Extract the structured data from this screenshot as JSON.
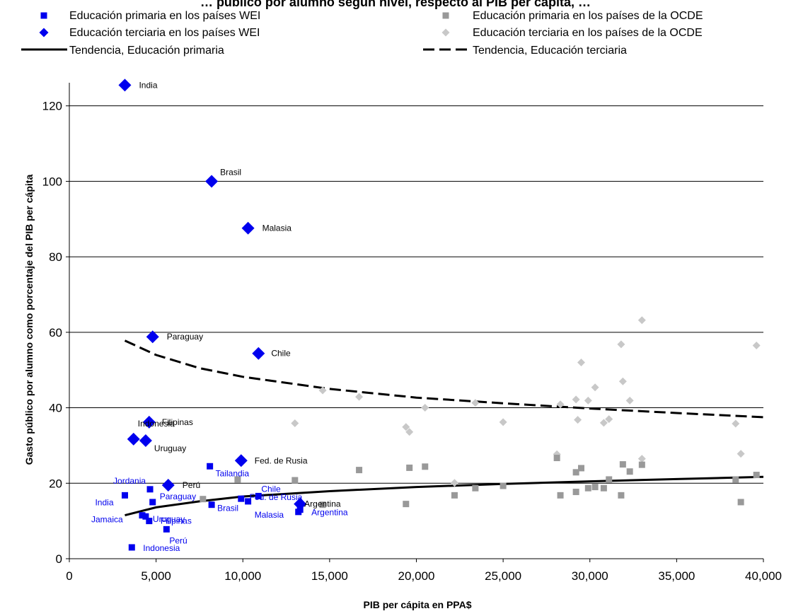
{
  "chart_data": {
    "type": "scatter",
    "title": "… público por alumno según nivel, respecto al PIB per cápita, …",
    "xlabel": "PIB  per cápita en PPA$",
    "ylabel": "Gasto público por alumno como porcentaje del PIB per cápita",
    "xlim": [
      0,
      40000
    ],
    "ylim": [
      0,
      125
    ],
    "x_ticks": [
      0,
      5000,
      10000,
      15000,
      20000,
      25000,
      30000,
      35000,
      40000
    ],
    "x_tick_labels": [
      "0",
      "5,000",
      "10,000",
      "15,000",
      "20,000",
      "25,000",
      "30,000",
      "35,000",
      "40,000"
    ],
    "y_ticks": [
      0,
      20,
      40,
      60,
      80,
      100,
      120
    ],
    "y_tick_labels": [
      "0",
      "20",
      "40",
      "60",
      "80",
      "100",
      "120"
    ],
    "grid": "horizontal",
    "legend_position": "top",
    "colors": {
      "wei": "#0000ee",
      "oecd_primary": "#999999",
      "oecd_tertiary": "#c8c8c8",
      "trend": "#000000"
    },
    "series": [
      {
        "name": "Educación primaria en los países WEI",
        "marker": "square",
        "points": [
          {
            "x": 3200,
            "y": 16.8,
            "label": "India"
          },
          {
            "x": 3600,
            "y": 3.0,
            "label": "Indonesia"
          },
          {
            "x": 4200,
            "y": 11.5,
            "label": "Jamaica"
          },
          {
            "x": 4400,
            "y": 11.2,
            "label": "Uruguay"
          },
          {
            "x": 4600,
            "y": 10.0,
            "label": "Filipinas"
          },
          {
            "x": 4650,
            "y": 18.4,
            "label": "Jordania"
          },
          {
            "x": 4800,
            "y": 15.0,
            "label": "Paraguay"
          },
          {
            "x": 5600,
            "y": 7.8,
            "label": "Perú"
          },
          {
            "x": 8100,
            "y": 24.5,
            "label": "Tailandia"
          },
          {
            "x": 8200,
            "y": 14.3,
            "label": "Brasil"
          },
          {
            "x": 9900,
            "y": 15.9,
            "label": ""
          },
          {
            "x": 10300,
            "y": 15.2,
            "label": "Fed. de Rusia"
          },
          {
            "x": 10900,
            "y": 16.6,
            "label": "Chile"
          },
          {
            "x": 13200,
            "y": 12.4,
            "label": "Malasia"
          },
          {
            "x": 13300,
            "y": 13.0,
            "label": "Argentina"
          }
        ]
      },
      {
        "name": "Educación terciaria en los países WEI",
        "marker": "diamond",
        "points": [
          {
            "x": 3200,
            "y": 125.5,
            "label": "India"
          },
          {
            "x": 3700,
            "y": 31.7,
            "label": "Indonesia"
          },
          {
            "x": 4400,
            "y": 31.3,
            "label": "Uruguay"
          },
          {
            "x": 4600,
            "y": 36.2,
            "label": "Filipinas"
          },
          {
            "x": 4800,
            "y": 58.8,
            "label": "Paraguay"
          },
          {
            "x": 5700,
            "y": 19.5,
            "label": "Perú"
          },
          {
            "x": 8200,
            "y": 100.0,
            "label": "Brasil"
          },
          {
            "x": 9900,
            "y": 26.0,
            "label": "Fed. de Rusia"
          },
          {
            "x": 10300,
            "y": 87.6,
            "label": "Malasia"
          },
          {
            "x": 10900,
            "y": 54.4,
            "label": "Chile"
          },
          {
            "x": 13300,
            "y": 14.5,
            "label": "Argentina"
          }
        ]
      },
      {
        "name": "Educación primaria en los países de la OCDE",
        "marker": "square",
        "points": [
          {
            "x": 7700,
            "y": 15.8
          },
          {
            "x": 9700,
            "y": 21.0
          },
          {
            "x": 13000,
            "y": 20.8
          },
          {
            "x": 14600,
            "y": 14.3
          },
          {
            "x": 16700,
            "y": 23.5
          },
          {
            "x": 19400,
            "y": 14.5
          },
          {
            "x": 19600,
            "y": 24.1
          },
          {
            "x": 20500,
            "y": 24.4
          },
          {
            "x": 22200,
            "y": 16.8
          },
          {
            "x": 23400,
            "y": 18.7
          },
          {
            "x": 25000,
            "y": 19.3
          },
          {
            "x": 28100,
            "y": 26.7
          },
          {
            "x": 28300,
            "y": 16.8
          },
          {
            "x": 29200,
            "y": 17.7
          },
          {
            "x": 29200,
            "y": 22.9
          },
          {
            "x": 29500,
            "y": 24.0
          },
          {
            "x": 29900,
            "y": 18.7
          },
          {
            "x": 30300,
            "y": 19.0
          },
          {
            "x": 30800,
            "y": 18.7
          },
          {
            "x": 31100,
            "y": 21.0
          },
          {
            "x": 31800,
            "y": 16.8
          },
          {
            "x": 31900,
            "y": 25.0
          },
          {
            "x": 32300,
            "y": 23.1
          },
          {
            "x": 33000,
            "y": 24.9
          },
          {
            "x": 38400,
            "y": 21.0
          },
          {
            "x": 38700,
            "y": 15.0
          },
          {
            "x": 39600,
            "y": 22.2
          }
        ]
      },
      {
        "name": "Educación terciaria en los países de la OCDE",
        "marker": "diamond",
        "points": [
          {
            "x": 13000,
            "y": 35.9
          },
          {
            "x": 14600,
            "y": 44.6
          },
          {
            "x": 16700,
            "y": 42.9
          },
          {
            "x": 19400,
            "y": 34.9
          },
          {
            "x": 19600,
            "y": 33.6
          },
          {
            "x": 20500,
            "y": 40.0
          },
          {
            "x": 22200,
            "y": 20.1
          },
          {
            "x": 23400,
            "y": 41.3
          },
          {
            "x": 25000,
            "y": 36.2
          },
          {
            "x": 28100,
            "y": 27.7
          },
          {
            "x": 28300,
            "y": 40.9
          },
          {
            "x": 29200,
            "y": 42.2
          },
          {
            "x": 29300,
            "y": 36.8
          },
          {
            "x": 29500,
            "y": 52.0
          },
          {
            "x": 29900,
            "y": 41.9
          },
          {
            "x": 30300,
            "y": 45.4
          },
          {
            "x": 30800,
            "y": 36.0
          },
          {
            "x": 31100,
            "y": 37.0
          },
          {
            "x": 31800,
            "y": 56.8
          },
          {
            "x": 31900,
            "y": 47.0
          },
          {
            "x": 32300,
            "y": 41.9
          },
          {
            "x": 33000,
            "y": 63.2
          },
          {
            "x": 33000,
            "y": 26.5
          },
          {
            "x": 38400,
            "y": 35.8
          },
          {
            "x": 38700,
            "y": 27.8
          },
          {
            "x": 39600,
            "y": 56.5
          }
        ]
      },
      {
        "name": "Tendencia, Educación primaria",
        "style": "solid",
        "points": [
          {
            "x": 3200,
            "y": 11.5
          },
          {
            "x": 5000,
            "y": 13.6
          },
          {
            "x": 7500,
            "y": 15.2
          },
          {
            "x": 10000,
            "y": 16.5
          },
          {
            "x": 15000,
            "y": 17.9
          },
          {
            "x": 20000,
            "y": 19.0
          },
          {
            "x": 25000,
            "y": 19.8
          },
          {
            "x": 30000,
            "y": 20.5
          },
          {
            "x": 35000,
            "y": 21.1
          },
          {
            "x": 40000,
            "y": 21.7
          }
        ]
      },
      {
        "name": "Tendencia, Educación terciaria",
        "style": "dashed",
        "points": [
          {
            "x": 3200,
            "y": 57.8
          },
          {
            "x": 5000,
            "y": 54.0
          },
          {
            "x": 7500,
            "y": 50.5
          },
          {
            "x": 10000,
            "y": 48.2
          },
          {
            "x": 15000,
            "y": 45.0
          },
          {
            "x": 20000,
            "y": 42.7
          },
          {
            "x": 25000,
            "y": 41.2
          },
          {
            "x": 30000,
            "y": 39.8
          },
          {
            "x": 35000,
            "y": 38.6
          },
          {
            "x": 40000,
            "y": 37.5
          }
        ]
      }
    ]
  }
}
